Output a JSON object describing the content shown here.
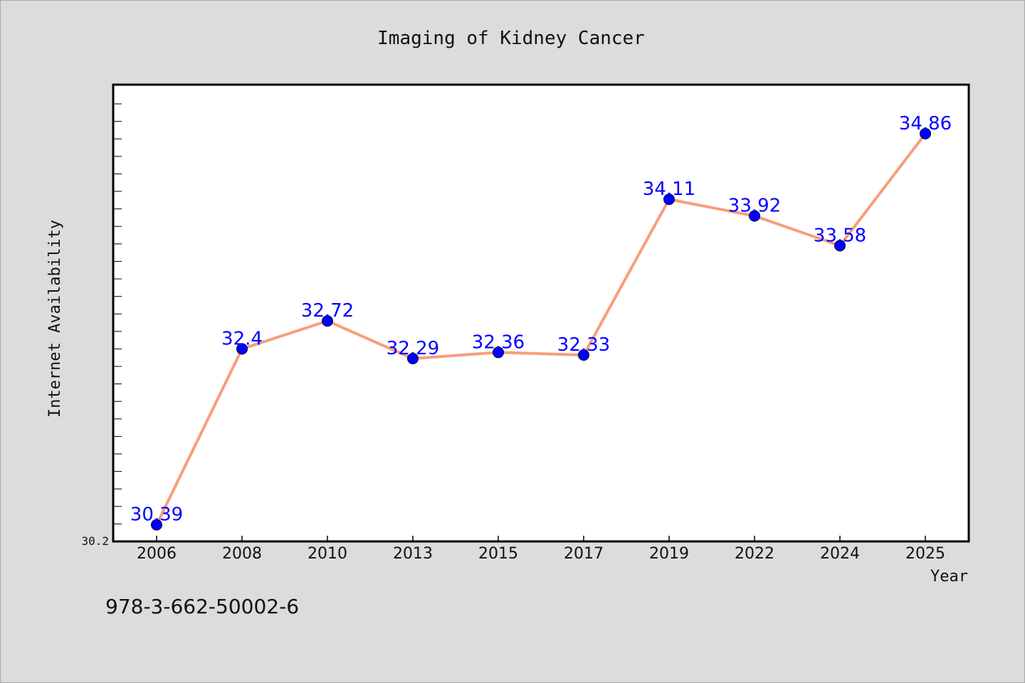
{
  "chart_data": {
    "type": "line",
    "title": "Imaging of Kidney Cancer",
    "xlabel": "Year",
    "ylabel": "Internet Availability",
    "categories": [
      "2006",
      "2008",
      "2010",
      "2013",
      "2015",
      "2017",
      "2019",
      "2022",
      "2024",
      "2025"
    ],
    "series": [
      {
        "values": [
          30.39,
          32.4,
          32.72,
          32.29,
          32.36,
          32.33,
          34.11,
          33.92,
          33.58,
          34.86
        ]
      }
    ],
    "ylim": [
      30.2,
      35.42
    ],
    "ytick_labels": [
      "30.2"
    ],
    "grid": false,
    "data_labels": true,
    "colors": {
      "line": "#f79e7c",
      "marker": "#0000ff",
      "label": "#0000ff",
      "axes_bg": "#ffffff",
      "figure_bg": "#dcdcdc"
    }
  },
  "footer": {
    "isbn": "978-3-662-50002-6"
  }
}
